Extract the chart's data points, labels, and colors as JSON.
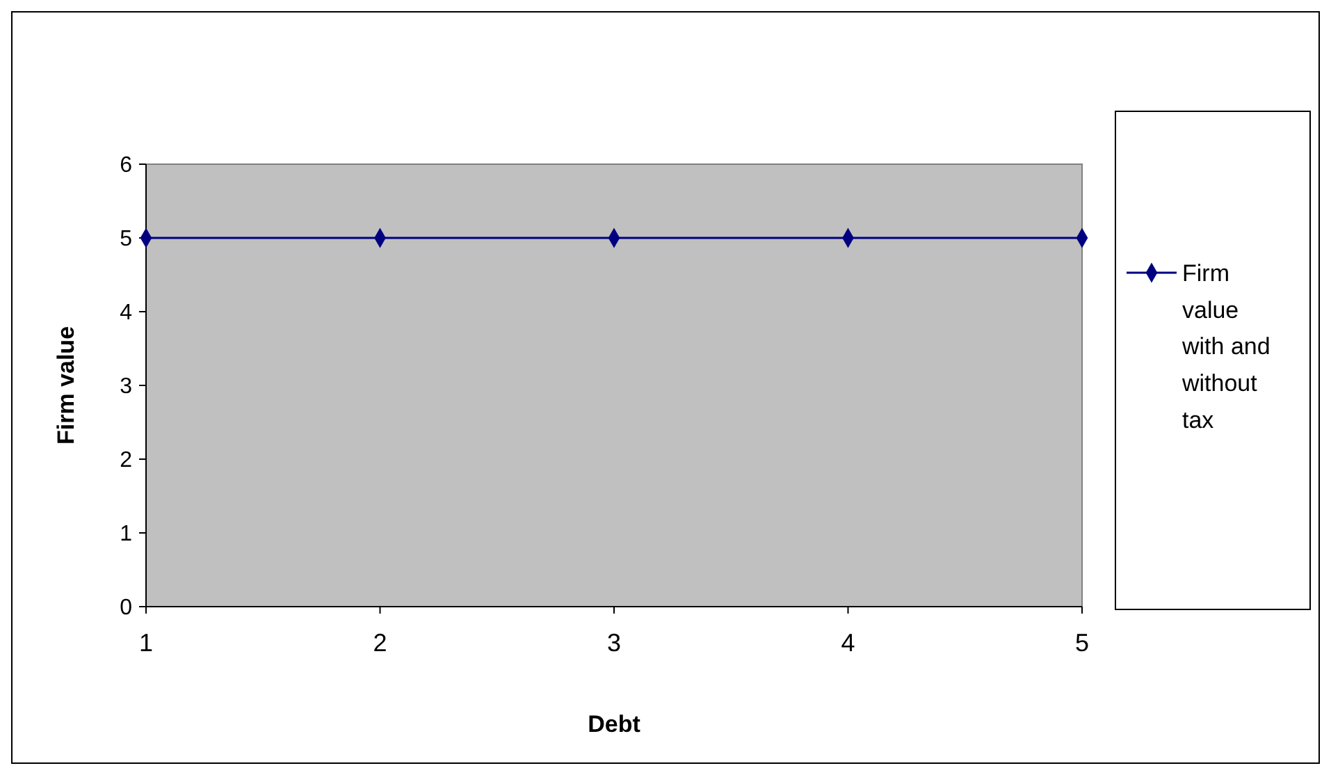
{
  "chart_data": {
    "type": "line",
    "xlabel": "Debt",
    "ylabel": "Firm value",
    "categories": [
      "1",
      "2",
      "3",
      "4",
      "5"
    ],
    "series": [
      {
        "name": "Firm value with and without tax",
        "color": "#000080",
        "values": [
          5,
          5,
          5,
          5,
          5
        ]
      }
    ],
    "ylim": [
      0,
      6
    ],
    "yticks": [
      0,
      1,
      2,
      3,
      4,
      5,
      6
    ],
    "grid": false,
    "legend": "right",
    "marker": "diamond",
    "line_style": "solid"
  }
}
